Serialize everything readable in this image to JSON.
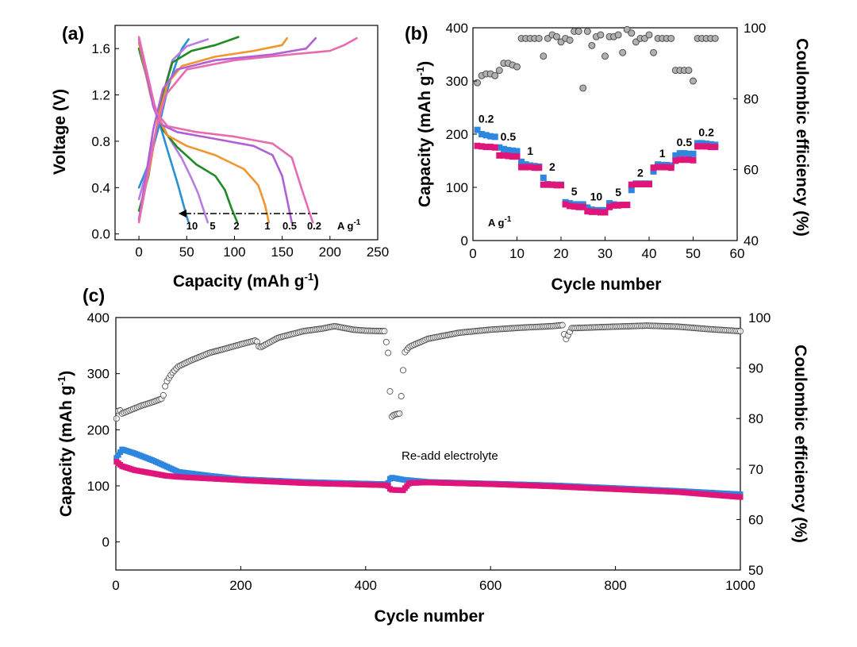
{
  "colors": {
    "blue": "#2f86de",
    "magenta": "#e0157a",
    "gray_fill": "#b0b0b0",
    "gray_stroke": "#444444",
    "curve_10": "#2b8fd6",
    "curve_5": "#b77de0",
    "curve_2": "#1e8a22",
    "curve_1": "#f0962c",
    "curve_05": "#b05fd6",
    "curve_02": "#e86bb0"
  },
  "chart_data": [
    {
      "id": "a",
      "panel_label": "(a)",
      "type": "line",
      "xlabel": "Capacity (mAh g",
      "xlabel_sup": "-1",
      "xlabel_end": ")",
      "ylabel": "Voltage (V)",
      "xlim": [
        -25,
        250
      ],
      "ylim": [
        -0.05,
        1.8
      ],
      "xticks": [
        0,
        50,
        100,
        150,
        200,
        250
      ],
      "yticks": [
        0.0,
        0.4,
        0.8,
        1.2,
        1.6
      ],
      "ytick_labels": [
        "0.0",
        "0.4",
        "0.8",
        "1.2",
        "1.6"
      ],
      "rate_labels": [
        "10",
        "5",
        "2",
        "1",
        "0.5",
        "0.2"
      ],
      "rate_unit": "A g",
      "rate_unit_sup": "-1",
      "series": [
        {
          "rate": "10",
          "color_key": "curve_10",
          "discharge": [
            [
              0,
              1.6
            ],
            [
              5,
              1.45
            ],
            [
              10,
              1.3
            ],
            [
              15,
              1.15
            ],
            [
              20,
              1.0
            ],
            [
              30,
              0.72
            ],
            [
              40,
              0.45
            ],
            [
              45,
              0.3
            ],
            [
              50,
              0.15
            ],
            [
              52,
              0.1
            ]
          ],
          "charge": [
            [
              0,
              0.4
            ],
            [
              10,
              0.6
            ],
            [
              20,
              0.9
            ],
            [
              30,
              1.25
            ],
            [
              40,
              1.5
            ],
            [
              45,
              1.6
            ],
            [
              52,
              1.68
            ]
          ]
        },
        {
          "rate": "5",
          "color_key": "curve_5",
          "discharge": [
            [
              0,
              1.6
            ],
            [
              8,
              1.35
            ],
            [
              15,
              1.15
            ],
            [
              20,
              1.02
            ],
            [
              30,
              0.85
            ],
            [
              45,
              0.65
            ],
            [
              55,
              0.48
            ],
            [
              62,
              0.35
            ],
            [
              68,
              0.2
            ],
            [
              72,
              0.1
            ]
          ],
          "charge": [
            [
              0,
              0.3
            ],
            [
              10,
              0.6
            ],
            [
              18,
              0.9
            ],
            [
              25,
              1.2
            ],
            [
              35,
              1.5
            ],
            [
              50,
              1.62
            ],
            [
              72,
              1.68
            ]
          ]
        },
        {
          "rate": "2",
          "color_key": "curve_2",
          "discharge": [
            [
              0,
              1.6
            ],
            [
              10,
              1.3
            ],
            [
              18,
              1.05
            ],
            [
              25,
              0.9
            ],
            [
              40,
              0.75
            ],
            [
              60,
              0.6
            ],
            [
              80,
              0.5
            ],
            [
              90,
              0.38
            ],
            [
              97,
              0.22
            ],
            [
              103,
              0.1
            ]
          ],
          "charge": [
            [
              0,
              0.2
            ],
            [
              10,
              0.5
            ],
            [
              18,
              0.9
            ],
            [
              25,
              1.2
            ],
            [
              35,
              1.48
            ],
            [
              55,
              1.58
            ],
            [
              80,
              1.63
            ],
            [
              104,
              1.7
            ]
          ]
        },
        {
          "rate": "1",
          "color_key": "curve_1",
          "discharge": [
            [
              0,
              1.65
            ],
            [
              12,
              1.2
            ],
            [
              20,
              1.0
            ],
            [
              30,
              0.85
            ],
            [
              50,
              0.76
            ],
            [
              80,
              0.68
            ],
            [
              110,
              0.56
            ],
            [
              125,
              0.42
            ],
            [
              132,
              0.25
            ],
            [
              136,
              0.1
            ]
          ],
          "charge": [
            [
              0,
              0.13
            ],
            [
              12,
              0.6
            ],
            [
              20,
              1.0
            ],
            [
              30,
              1.3
            ],
            [
              45,
              1.45
            ],
            [
              80,
              1.53
            ],
            [
              120,
              1.58
            ],
            [
              150,
              1.63
            ],
            [
              155,
              1.69
            ]
          ]
        },
        {
          "rate": "0.5",
          "color_key": "curve_05",
          "discharge": [
            [
              0,
              1.68
            ],
            [
              15,
              1.1
            ],
            [
              22,
              0.95
            ],
            [
              40,
              0.88
            ],
            [
              80,
              0.82
            ],
            [
              120,
              0.76
            ],
            [
              140,
              0.68
            ],
            [
              150,
              0.5
            ],
            [
              155,
              0.3
            ],
            [
              160,
              0.1
            ]
          ],
          "charge": [
            [
              0,
              0.12
            ],
            [
              15,
              0.9
            ],
            [
              25,
              1.25
            ],
            [
              40,
              1.42
            ],
            [
              80,
              1.5
            ],
            [
              140,
              1.55
            ],
            [
              175,
              1.6
            ],
            [
              185,
              1.69
            ]
          ]
        },
        {
          "rate": "0.2",
          "color_key": "curve_02",
          "discharge": [
            [
              0,
              1.7
            ],
            [
              18,
              1.05
            ],
            [
              30,
              0.93
            ],
            [
              60,
              0.88
            ],
            [
              100,
              0.84
            ],
            [
              140,
              0.78
            ],
            [
              160,
              0.66
            ],
            [
              170,
              0.4
            ],
            [
              178,
              0.2
            ],
            [
              182,
              0.1
            ]
          ],
          "charge": [
            [
              0,
              0.1
            ],
            [
              18,
              0.9
            ],
            [
              28,
              1.2
            ],
            [
              50,
              1.42
            ],
            [
              100,
              1.5
            ],
            [
              160,
              1.55
            ],
            [
              200,
              1.58
            ],
            [
              215,
              1.63
            ],
            [
              228,
              1.69
            ]
          ]
        }
      ]
    },
    {
      "id": "b",
      "panel_label": "(b)",
      "type": "scatter",
      "xlabel": "Cycle number",
      "ylabel": "Capacity (mAh g",
      "ylabel_sup": "-1",
      "ylabel_end": ")",
      "y2label": "Coulombic efficiency (%)",
      "xlim": [
        0,
        60
      ],
      "ylim": [
        0,
        400
      ],
      "y2lim": [
        40,
        100
      ],
      "xticks": [
        0,
        10,
        20,
        30,
        40,
        50,
        60
      ],
      "yticks": [
        0,
        100,
        200,
        300,
        400
      ],
      "y2ticks": [
        40,
        60,
        80,
        100
      ],
      "unit_note": "A g",
      "unit_note_sup": "-1",
      "rates": [
        "0.2",
        "0.5",
        "1",
        "2",
        "5",
        "10",
        "5",
        "2",
        "1",
        "0.5",
        "0.2"
      ],
      "charge": [
        208,
        200,
        198,
        196,
        195,
        175,
        172,
        170,
        169,
        168,
        148,
        143,
        141,
        140,
        139,
        118,
        106,
        105,
        105,
        105,
        72,
        70,
        68,
        68,
        68,
        62,
        58,
        57,
        57,
        57,
        70,
        68,
        67,
        67,
        67,
        95,
        107,
        107,
        107,
        107,
        130,
        143,
        142,
        142,
        141,
        160,
        164,
        164,
        163,
        163,
        183,
        183,
        182,
        181,
        180
      ],
      "discharge": [
        178,
        177,
        176,
        176,
        175,
        160,
        160,
        159,
        158,
        158,
        138,
        138,
        138,
        137,
        137,
        105,
        105,
        105,
        104,
        104,
        68,
        65,
        64,
        63,
        63,
        55,
        54,
        54,
        53,
        53,
        63,
        66,
        66,
        67,
        67,
        105,
        106,
        106,
        106,
        106,
        137,
        138,
        138,
        138,
        137,
        150,
        152,
        152,
        152,
        151,
        177,
        177,
        177,
        176,
        176
      ],
      "ce": [
        84.5,
        86.5,
        87,
        87,
        86.5,
        88,
        90,
        90,
        89.5,
        89,
        97,
        97,
        97,
        97,
        97,
        92,
        97,
        98,
        97.5,
        96,
        97,
        96.5,
        99,
        99,
        83,
        99,
        95,
        97.5,
        98,
        92,
        97.5,
        97.5,
        98,
        93,
        99.5,
        98.5,
        96,
        97,
        97,
        98,
        93,
        97,
        97,
        97,
        97,
        88,
        88,
        88,
        88,
        85,
        97,
        97,
        97,
        97,
        97
      ]
    },
    {
      "id": "c",
      "panel_label": "(c)",
      "type": "scatter",
      "xlabel": "Cycle number",
      "ylabel": "Capacity (mAh g",
      "ylabel_sup": "-1",
      "ylabel_end": ")",
      "y2label": "Coulombic efficiency (%)",
      "xlim": [
        0,
        1000
      ],
      "ylim": [
        -50,
        400
      ],
      "y2lim": [
        50,
        100
      ],
      "xticks": [
        0,
        200,
        400,
        600,
        800,
        1000
      ],
      "yticks": [
        0,
        100,
        200,
        300,
        400
      ],
      "y2ticks": [
        50,
        60,
        70,
        80,
        90,
        100
      ],
      "annotation": "Re-add electrolyte",
      "charge": [
        [
          1,
          150
        ],
        [
          10,
          165
        ],
        [
          30,
          158
        ],
        [
          60,
          145
        ],
        [
          80,
          135
        ],
        [
          100,
          125
        ],
        [
          150,
          118
        ],
        [
          200,
          112
        ],
        [
          300,
          107
        ],
        [
          400,
          104
        ],
        [
          435,
          103
        ],
        [
          440,
          115
        ],
        [
          460,
          111
        ],
        [
          500,
          107
        ],
        [
          600,
          104
        ],
        [
          700,
          101
        ],
        [
          800,
          96
        ],
        [
          900,
          91
        ],
        [
          1000,
          85
        ]
      ],
      "discharge": [
        [
          1,
          143
        ],
        [
          10,
          135
        ],
        [
          30,
          128
        ],
        [
          60,
          122
        ],
        [
          80,
          118
        ],
        [
          100,
          116
        ],
        [
          150,
          113
        ],
        [
          200,
          110
        ],
        [
          300,
          105
        ],
        [
          400,
          102
        ],
        [
          435,
          101
        ],
        [
          440,
          93
        ],
        [
          460,
          92
        ],
        [
          470,
          105
        ],
        [
          500,
          106
        ],
        [
          600,
          103
        ],
        [
          700,
          99
        ],
        [
          800,
          94
        ],
        [
          900,
          89
        ],
        [
          1000,
          80
        ]
      ],
      "ce": [
        [
          1,
          80
        ],
        [
          5,
          82
        ],
        [
          10,
          81
        ],
        [
          20,
          81.5
        ],
        [
          40,
          82.5
        ],
        [
          60,
          83.3
        ],
        [
          75,
          84
        ],
        [
          80,
          87
        ],
        [
          90,
          89
        ],
        [
          100,
          90.3
        ],
        [
          120,
          91.5
        ],
        [
          150,
          93
        ],
        [
          180,
          94
        ],
        [
          200,
          94.7
        ],
        [
          225,
          95.5
        ],
        [
          230,
          94
        ],
        [
          260,
          96
        ],
        [
          300,
          97.3
        ],
        [
          330,
          97.8
        ],
        [
          350,
          98.3
        ],
        [
          380,
          97.6
        ],
        [
          400,
          97.4
        ],
        [
          430,
          97.3
        ],
        [
          436,
          93
        ],
        [
          441,
          80.3
        ],
        [
          446,
          80.8
        ],
        [
          455,
          81
        ],
        [
          462,
          93
        ],
        [
          470,
          94.2
        ],
        [
          500,
          95.8
        ],
        [
          550,
          97
        ],
        [
          600,
          97.6
        ],
        [
          650,
          98
        ],
        [
          700,
          98.3
        ],
        [
          715,
          98.5
        ],
        [
          720,
          95.5
        ],
        [
          730,
          97.9
        ],
        [
          800,
          98.2
        ],
        [
          850,
          98.4
        ],
        [
          900,
          98.2
        ],
        [
          950,
          97.7
        ],
        [
          1000,
          97.3
        ]
      ]
    }
  ]
}
